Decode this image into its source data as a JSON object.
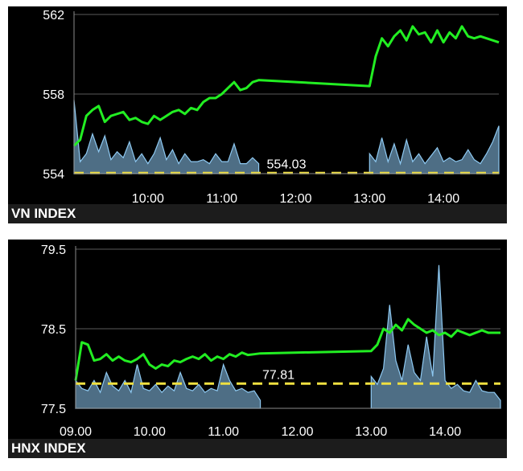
{
  "chart_data": [
    {
      "type": "line",
      "title": "VN INDEX",
      "reference": {
        "value": 554.03,
        "label": "554.03"
      },
      "y_ticks": [
        {
          "value": 554,
          "label": "554"
        },
        {
          "value": 558,
          "label": "558"
        },
        {
          "value": 562,
          "label": "562"
        }
      ],
      "x_ticks": [
        {
          "value": "10:00",
          "label": "10:00"
        },
        {
          "value": "11:00",
          "label": "11:00"
        },
        {
          "value": "12:00",
          "label": "12:00"
        },
        {
          "value": "13:00",
          "label": "13:00"
        },
        {
          "value": "14:00",
          "label": "14:00"
        }
      ],
      "ylim": [
        554,
        562
      ],
      "xlim": [
        "09:00",
        "14:45"
      ],
      "grid": true,
      "series": [
        {
          "kind": "price",
          "color": "#22ee22",
          "x": [
            "09:00",
            "09:05",
            "09:10",
            "09:15",
            "09:20",
            "09:25",
            "09:30",
            "09:35",
            "09:40",
            "09:45",
            "09:50",
            "09:55",
            "10:00",
            "10:05",
            "10:10",
            "10:15",
            "10:20",
            "10:25",
            "10:30",
            "10:35",
            "10:40",
            "10:45",
            "10:50",
            "10:55",
            "11:00",
            "11:05",
            "11:10",
            "11:15",
            "11:20",
            "11:25",
            "11:30",
            "13:00",
            "13:05",
            "13:10",
            "13:15",
            "13:20",
            "13:25",
            "13:30",
            "13:35",
            "13:40",
            "13:45",
            "13:50",
            "13:55",
            "14:00",
            "14:05",
            "14:10",
            "14:15",
            "14:20",
            "14:25",
            "14:30",
            "14:35",
            "14:40",
            "14:45"
          ],
          "y": [
            555.4,
            555.7,
            556.9,
            557.2,
            557.4,
            556.6,
            556.9,
            557.0,
            557.1,
            556.7,
            556.8,
            556.6,
            556.5,
            556.9,
            556.7,
            556.9,
            557.1,
            557.2,
            557.0,
            557.3,
            557.2,
            557.6,
            557.8,
            557.8,
            558.0,
            558.3,
            558.6,
            558.2,
            558.3,
            558.6,
            558.7,
            558.4,
            559.9,
            560.8,
            560.4,
            560.9,
            561.2,
            560.7,
            561.4,
            561.0,
            561.1,
            560.6,
            561.2,
            560.6,
            561.1,
            560.8,
            561.4,
            560.9,
            560.8,
            560.9,
            560.8,
            560.7,
            560.6
          ]
        },
        {
          "kind": "volume",
          "color": "#8ec9f2",
          "x": [
            "09:00",
            "09:05",
            "09:10",
            "09:15",
            "09:20",
            "09:25",
            "09:30",
            "09:35",
            "09:40",
            "09:45",
            "09:50",
            "09:55",
            "10:00",
            "10:05",
            "10:10",
            "10:15",
            "10:20",
            "10:25",
            "10:30",
            "10:35",
            "10:40",
            "10:45",
            "10:50",
            "10:55",
            "11:00",
            "11:05",
            "11:10",
            "11:15",
            "11:20",
            "11:25",
            "11:30",
            "13:00",
            "13:05",
            "13:10",
            "13:15",
            "13:20",
            "13:25",
            "13:30",
            "13:35",
            "13:40",
            "13:45",
            "13:50",
            "13:55",
            "14:00",
            "14:05",
            "14:10",
            "14:15",
            "14:20",
            "14:25",
            "14:30",
            "14:35",
            "14:40",
            "14:45"
          ],
          "y": [
            557.7,
            554.6,
            555.0,
            556.0,
            555.1,
            555.9,
            554.7,
            555.1,
            554.8,
            555.6,
            554.6,
            555.0,
            554.5,
            555.0,
            555.8,
            554.7,
            555.2,
            554.5,
            555.0,
            554.6,
            554.6,
            554.7,
            554.5,
            555.0,
            554.6,
            554.6,
            555.5,
            554.5,
            554.5,
            554.8,
            554.5,
            555.0,
            554.6,
            555.8,
            554.6,
            555.5,
            554.5,
            555.7,
            554.6,
            555.0,
            554.5,
            554.9,
            555.3,
            554.6,
            554.8,
            554.6,
            554.7,
            555.2,
            554.7,
            554.5,
            555.0,
            555.6,
            556.4
          ]
        }
      ]
    },
    {
      "type": "line",
      "title": "HNX INDEX",
      "reference": {
        "value": 77.81,
        "label": "77.81"
      },
      "y_ticks": [
        {
          "value": 77.5,
          "label": "77.5"
        },
        {
          "value": 78.5,
          "label": "78.5"
        },
        {
          "value": 79.5,
          "label": "79.5"
        }
      ],
      "x_ticks": [
        {
          "value": "09:00",
          "label": "09.00"
        },
        {
          "value": "10:00",
          "label": "10.00"
        },
        {
          "value": "11:00",
          "label": "11.00"
        },
        {
          "value": "12:00",
          "label": "12.00"
        },
        {
          "value": "13:00",
          "label": "13.00"
        },
        {
          "value": "14:00",
          "label": "14.00"
        }
      ],
      "ylim": [
        77.5,
        79.5
      ],
      "xlim": [
        "09:00",
        "14:45"
      ],
      "grid": true,
      "series": [
        {
          "kind": "price",
          "color": "#22ee22",
          "x": [
            "09:00",
            "09:05",
            "09:10",
            "09:15",
            "09:20",
            "09:25",
            "09:30",
            "09:35",
            "09:40",
            "09:45",
            "09:50",
            "09:55",
            "10:00",
            "10:05",
            "10:10",
            "10:15",
            "10:20",
            "10:25",
            "10:30",
            "10:35",
            "10:40",
            "10:45",
            "10:50",
            "10:55",
            "11:00",
            "11:05",
            "11:10",
            "11:15",
            "11:20",
            "11:25",
            "11:30",
            "13:00",
            "13:05",
            "13:10",
            "13:15",
            "13:20",
            "13:25",
            "13:30",
            "13:35",
            "13:40",
            "13:45",
            "13:50",
            "13:55",
            "14:00",
            "14:05",
            "14:10",
            "14:15",
            "14:20",
            "14:25",
            "14:30",
            "14:35",
            "14:40",
            "14:45"
          ],
          "y": [
            77.85,
            78.33,
            78.3,
            78.1,
            78.12,
            78.18,
            78.1,
            78.15,
            78.1,
            78.08,
            78.12,
            78.18,
            78.05,
            78.0,
            78.05,
            78.03,
            78.1,
            78.08,
            78.12,
            78.15,
            78.12,
            78.18,
            78.1,
            78.15,
            78.12,
            78.18,
            78.15,
            78.2,
            78.17,
            78.18,
            78.19,
            78.22,
            78.3,
            78.5,
            78.45,
            78.55,
            78.48,
            78.62,
            78.55,
            78.5,
            78.45,
            78.48,
            78.42,
            78.45,
            78.4,
            78.48,
            78.45,
            78.42,
            78.45,
            78.48,
            78.45,
            78.45,
            78.45
          ]
        },
        {
          "kind": "volume",
          "color": "#8ec9f2",
          "x": [
            "09:00",
            "09:05",
            "09:10",
            "09:15",
            "09:20",
            "09:25",
            "09:30",
            "09:35",
            "09:40",
            "09:45",
            "09:50",
            "09:55",
            "10:00",
            "10:05",
            "10:10",
            "10:15",
            "10:20",
            "10:25",
            "10:30",
            "10:35",
            "10:40",
            "10:45",
            "10:50",
            "10:55",
            "11:00",
            "11:05",
            "11:10",
            "11:15",
            "11:20",
            "11:25",
            "11:30",
            "13:00",
            "13:05",
            "13:10",
            "13:15",
            "13:20",
            "13:25",
            "13:30",
            "13:35",
            "13:40",
            "13:45",
            "13:50",
            "13:55",
            "14:00",
            "14:05",
            "14:10",
            "14:15",
            "14:20",
            "14:25",
            "14:30",
            "14:35",
            "14:40",
            "14:45"
          ],
          "y": [
            77.85,
            77.75,
            77.72,
            77.85,
            77.7,
            77.95,
            77.78,
            77.72,
            77.85,
            77.7,
            78.05,
            77.75,
            77.72,
            77.8,
            77.7,
            77.78,
            77.72,
            77.95,
            77.75,
            77.72,
            77.8,
            77.7,
            77.75,
            77.72,
            78.05,
            77.85,
            77.72,
            77.75,
            77.7,
            77.72,
            77.6,
            77.9,
            77.8,
            78.0,
            78.8,
            78.1,
            77.85,
            78.3,
            77.95,
            77.85,
            78.4,
            77.9,
            79.3,
            77.85,
            77.75,
            77.8,
            77.72,
            77.7,
            77.85,
            77.72,
            77.7,
            77.7,
            77.6
          ]
        }
      ]
    }
  ]
}
